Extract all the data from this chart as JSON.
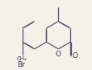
{
  "bg_color": "#f5f0e8",
  "bond_color": "#555570",
  "bond_lw": 0.9,
  "dbo": 0.018,
  "text_color": "#333350",
  "font_size": 6.5,
  "label_O": "O",
  "label_Br": "Br"
}
